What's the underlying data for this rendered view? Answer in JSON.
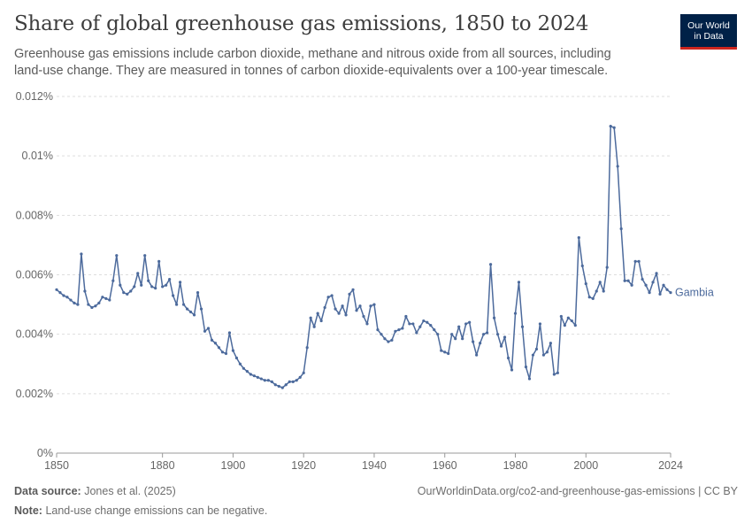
{
  "header": {
    "title": "Share of global greenhouse gas emissions, 1850 to 2024",
    "subtitle": "Greenhouse gas emissions include carbon dioxide, methane and nitrous oxide from all sources, including land-use change. They are measured in tonnes of carbon dioxide-equivalents over a 100-year timescale.",
    "logo_line1": "Our World",
    "logo_line2": "in Data"
  },
  "footer": {
    "source_label": "Data source:",
    "source_text": "Jones et al. (2025)",
    "note_label": "Note:",
    "note_text": "Land-use change emissions can be negative.",
    "url": "OurWorldinData.org/co2-and-greenhouse-gas-emissions | CC BY"
  },
  "colors": {
    "series": "#4c6a9c",
    "grid": "#dddddd",
    "axis": "#999999"
  },
  "chart_data": {
    "type": "line",
    "xlim": [
      1850,
      2024
    ],
    "ylim": [
      0,
      0.012
    ],
    "y_ticks": [
      0,
      0.002,
      0.004,
      0.006,
      0.008,
      0.01,
      0.012
    ],
    "y_tick_labels": [
      "0%",
      "0.002%",
      "0.004%",
      "0.006%",
      "0.008%",
      "0.01%",
      "0.012%"
    ],
    "x_ticks": [
      1850,
      1880,
      1900,
      1920,
      1940,
      1960,
      1980,
      2000,
      2024
    ],
    "x_tick_labels": [
      "1850",
      "1880",
      "1900",
      "1920",
      "1940",
      "1960",
      "1980",
      "2000",
      "2024"
    ],
    "grid": "horizontal dashed",
    "series": [
      {
        "name": "Gambia",
        "x": [
          1850,
          1851,
          1852,
          1853,
          1854,
          1855,
          1856,
          1857,
          1858,
          1859,
          1860,
          1861,
          1862,
          1863,
          1864,
          1865,
          1866,
          1867,
          1868,
          1869,
          1870,
          1871,
          1872,
          1873,
          1874,
          1875,
          1876,
          1877,
          1878,
          1879,
          1880,
          1881,
          1882,
          1883,
          1884,
          1885,
          1886,
          1887,
          1888,
          1889,
          1890,
          1891,
          1892,
          1893,
          1894,
          1895,
          1896,
          1897,
          1898,
          1899,
          1900,
          1901,
          1902,
          1903,
          1904,
          1905,
          1906,
          1907,
          1908,
          1909,
          1910,
          1911,
          1912,
          1913,
          1914,
          1915,
          1916,
          1917,
          1918,
          1919,
          1920,
          1921,
          1922,
          1923,
          1924,
          1925,
          1926,
          1927,
          1928,
          1929,
          1930,
          1931,
          1932,
          1933,
          1934,
          1935,
          1936,
          1937,
          1938,
          1939,
          1940,
          1941,
          1942,
          1943,
          1944,
          1945,
          1946,
          1947,
          1948,
          1949,
          1950,
          1951,
          1952,
          1953,
          1954,
          1955,
          1956,
          1957,
          1958,
          1959,
          1960,
          1961,
          1962,
          1963,
          1964,
          1965,
          1966,
          1967,
          1968,
          1969,
          1970,
          1971,
          1972,
          1973,
          1974,
          1975,
          1976,
          1977,
          1978,
          1979,
          1980,
          1981,
          1982,
          1983,
          1984,
          1985,
          1986,
          1987,
          1988,
          1989,
          1990,
          1991,
          1992,
          1993,
          1994,
          1995,
          1996,
          1997,
          1998,
          1999,
          2000,
          2001,
          2002,
          2003,
          2004,
          2005,
          2006,
          2007,
          2008,
          2009,
          2010,
          2011,
          2012,
          2013,
          2014,
          2015,
          2016,
          2017,
          2018,
          2019,
          2020,
          2021,
          2022,
          2023,
          2024
        ],
        "y": [
          0.0055,
          0.0054,
          0.0053,
          0.00525,
          0.00515,
          0.00505,
          0.005,
          0.0067,
          0.00545,
          0.005,
          0.0049,
          0.00495,
          0.00505,
          0.00525,
          0.0052,
          0.00515,
          0.0058,
          0.00665,
          0.00565,
          0.0054,
          0.00535,
          0.00545,
          0.0056,
          0.00605,
          0.00565,
          0.00665,
          0.0058,
          0.0056,
          0.00555,
          0.00645,
          0.0056,
          0.00565,
          0.00585,
          0.0053,
          0.005,
          0.00575,
          0.005,
          0.00485,
          0.00475,
          0.00465,
          0.0054,
          0.00485,
          0.0041,
          0.0042,
          0.0038,
          0.0037,
          0.00355,
          0.0034,
          0.00335,
          0.00405,
          0.00345,
          0.0032,
          0.003,
          0.00285,
          0.00275,
          0.00265,
          0.0026,
          0.00255,
          0.0025,
          0.00245,
          0.00245,
          0.0024,
          0.0023,
          0.00225,
          0.0022,
          0.0023,
          0.0024,
          0.0024,
          0.00245,
          0.00255,
          0.0027,
          0.00355,
          0.00455,
          0.00425,
          0.0047,
          0.00445,
          0.0049,
          0.00525,
          0.0053,
          0.00485,
          0.0047,
          0.00495,
          0.00465,
          0.00535,
          0.0055,
          0.0048,
          0.00495,
          0.0046,
          0.00435,
          0.00495,
          0.005,
          0.00415,
          0.004,
          0.00385,
          0.00375,
          0.0038,
          0.0041,
          0.00415,
          0.0042,
          0.0046,
          0.00435,
          0.00435,
          0.00405,
          0.00425,
          0.00445,
          0.0044,
          0.0043,
          0.00415,
          0.004,
          0.00345,
          0.0034,
          0.00335,
          0.004,
          0.00385,
          0.00425,
          0.00385,
          0.00435,
          0.0044,
          0.00375,
          0.0033,
          0.0037,
          0.004,
          0.00405,
          0.00635,
          0.00455,
          0.004,
          0.0036,
          0.0039,
          0.0032,
          0.0028,
          0.0047,
          0.00575,
          0.00425,
          0.0029,
          0.0025,
          0.0033,
          0.0035,
          0.00435,
          0.0033,
          0.0034,
          0.0037,
          0.00265,
          0.0027,
          0.0046,
          0.0043,
          0.00455,
          0.00445,
          0.0043,
          0.00725,
          0.0063,
          0.0057,
          0.00525,
          0.0052,
          0.00545,
          0.00575,
          0.00545,
          0.00625,
          0.011,
          0.01095,
          0.00965,
          0.00755,
          0.0058,
          0.0058,
          0.00565,
          0.00645,
          0.00645,
          0.00585,
          0.00565,
          0.0054,
          0.00575,
          0.00605,
          0.00535,
          0.00565,
          0.0055,
          0.0054
        ]
      }
    ]
  }
}
